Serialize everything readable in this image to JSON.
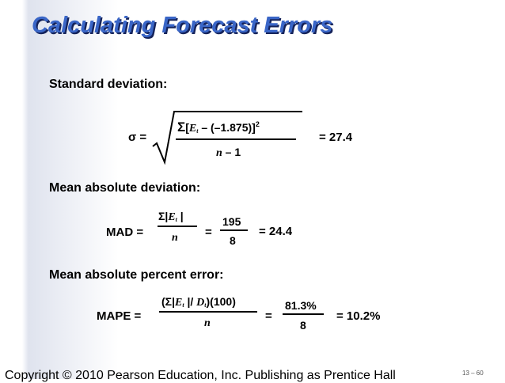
{
  "title": "Calculating Forecast Errors",
  "sections": {
    "std": {
      "heading": "Standard deviation:",
      "lhs": "σ =",
      "num_sigma": "Σ",
      "num_open": "[",
      "num_var": "E",
      "num_sub": "t",
      "num_rest": " – (–1.875)]",
      "num_sup": "2",
      "den_var": "n",
      "den_rest": " – 1",
      "result": "= 27.4"
    },
    "mad": {
      "heading": "Mean absolute deviation:",
      "lhs": "MAD =",
      "num_pre": "Σ|",
      "num_var": "E",
      "num_sub": "t",
      "num_post": " |",
      "den_var": "n",
      "eq": "=",
      "frac_num": "195",
      "frac_den": "8",
      "result": "= 24.4"
    },
    "mape": {
      "heading": "Mean absolute percent error:",
      "lhs": "MAPE =",
      "num_pre": "(Σ|",
      "num_var1": "E",
      "num_sub1": "t",
      "num_mid": " |/ ",
      "num_var2": "D",
      "num_sub2": "t",
      "num_post": ")(100)",
      "den_var": "n",
      "eq": "=",
      "frac_num": "81.3%",
      "frac_den": "8",
      "result": "= 10.2%"
    }
  },
  "footer": "Copyright © 2010 Pearson Education, Inc. Publishing as Prentice Hall",
  "page_number": "13 – 60",
  "colors": {
    "title": "#3a66c7",
    "title_shadow": "#15235a"
  }
}
